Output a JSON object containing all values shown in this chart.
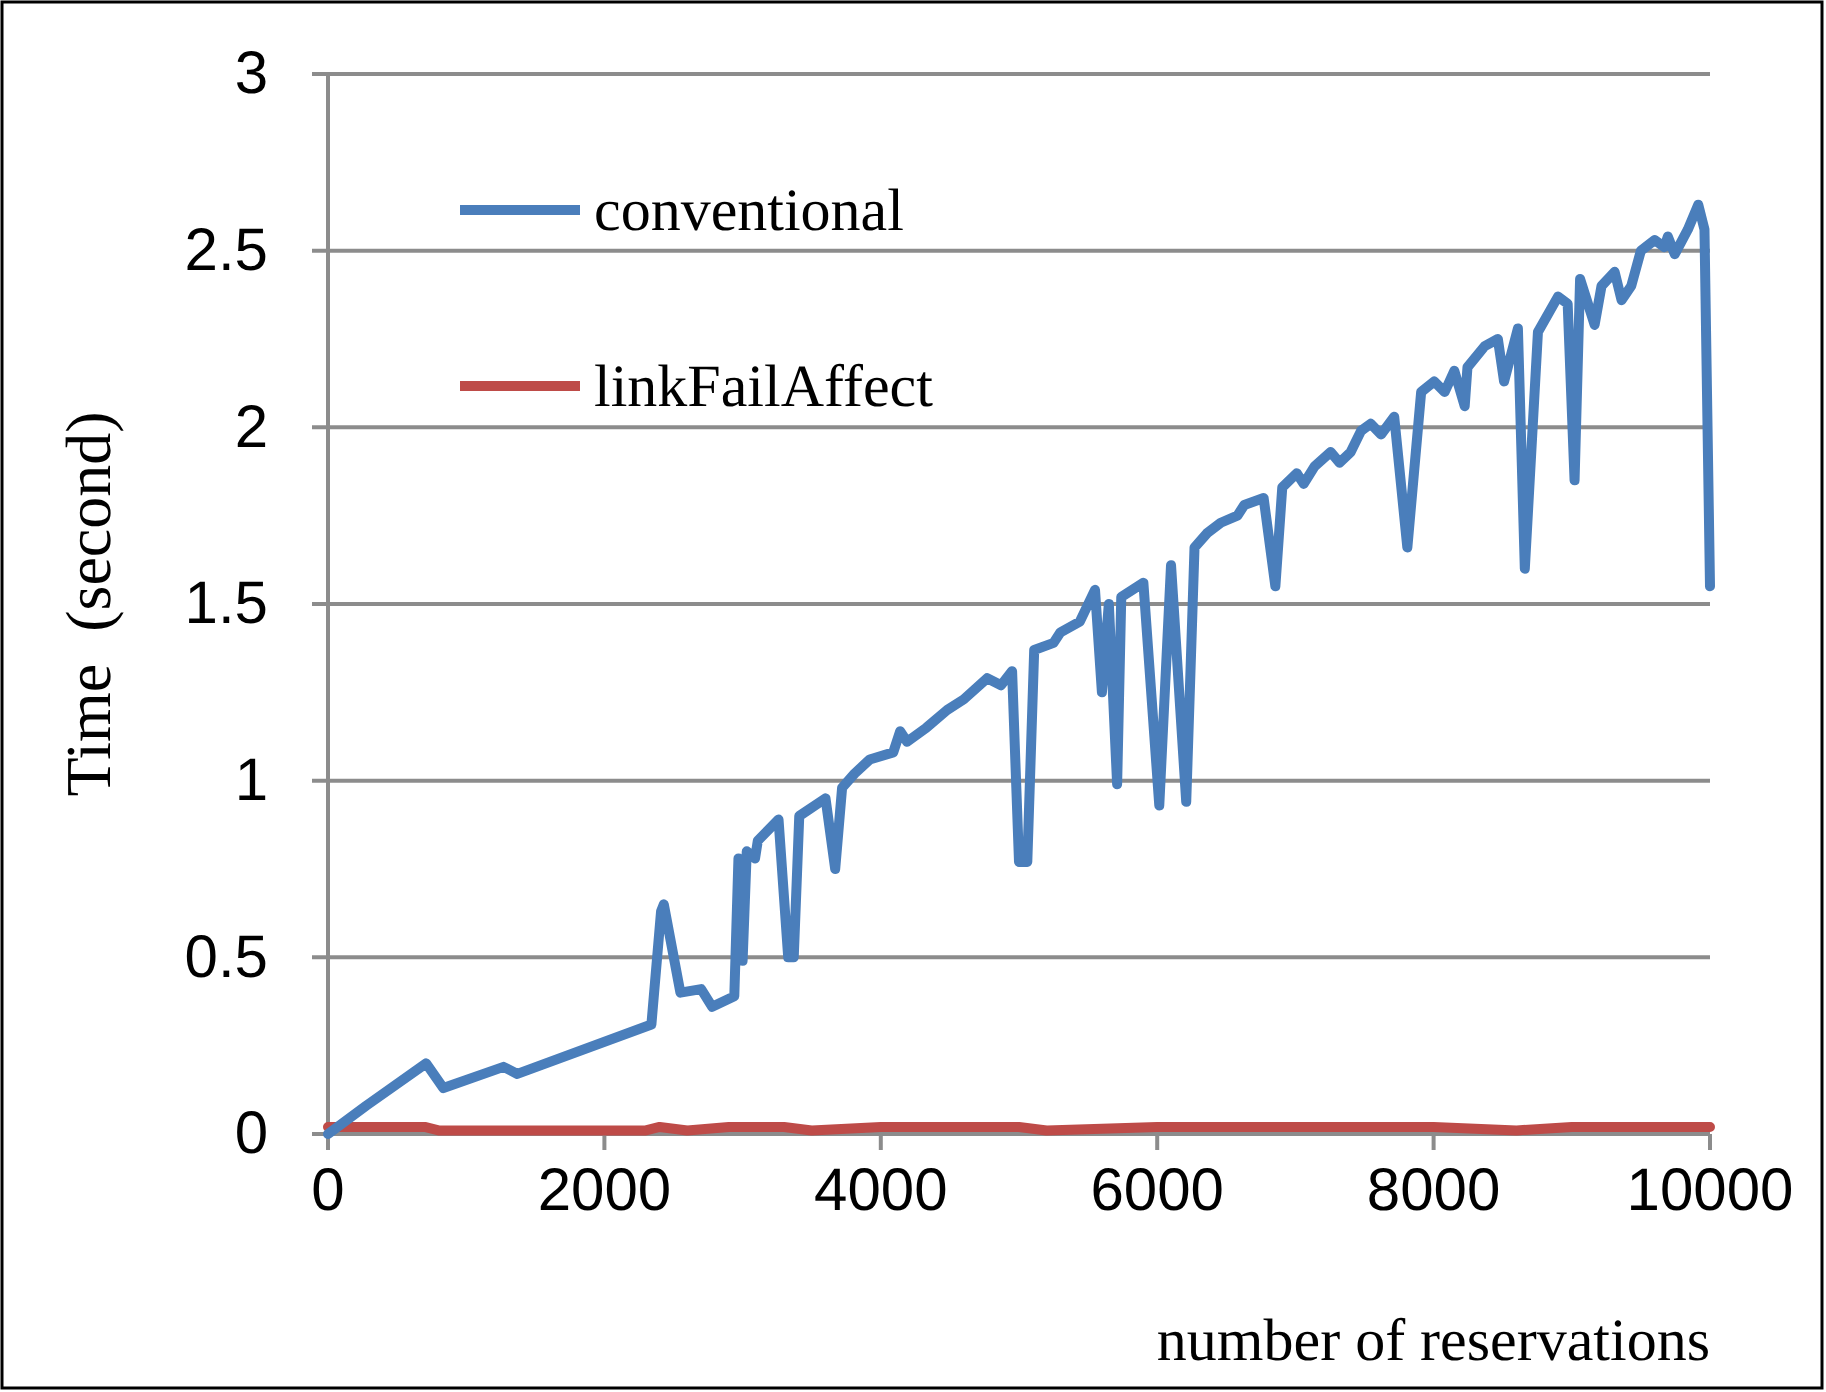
{
  "chart_data": {
    "type": "line",
    "xlabel": "number of reservations",
    "ylabel": "Time  (second)",
    "xlim": [
      0,
      10000
    ],
    "xticks": [
      0,
      2000,
      4000,
      6000,
      8000,
      10000
    ],
    "ylim": [
      0,
      3
    ],
    "yticks": [
      0,
      0.5,
      1,
      1.5,
      2,
      2.5,
      3
    ],
    "grid": "y",
    "legend": "top left",
    "line_style": "solid",
    "marker": "none",
    "series": [
      {
        "name": "conventional",
        "color": "#4a7ebb",
        "x": [
          0,
          276,
          710,
          835,
          1270,
          1370,
          2340,
          2410,
          2430,
          2550,
          2700,
          2780,
          2940,
          2970,
          3000,
          3030,
          3090,
          3110,
          3260,
          3330,
          3370,
          3410,
          3600,
          3670,
          3720,
          3810,
          3920,
          4090,
          4140,
          4190,
          4330,
          4480,
          4600,
          4770,
          4870,
          4950,
          5000,
          5060,
          5110,
          5250,
          5300,
          5440,
          5550,
          5600,
          5650,
          5710,
          5740,
          5900,
          6015,
          6100,
          6210,
          6270,
          6360,
          6460,
          6580,
          6630,
          6770,
          6855,
          6905,
          7010,
          7060,
          7140,
          7255,
          7320,
          7400,
          7475,
          7545,
          7620,
          7715,
          7810,
          7910,
          8005,
          8080,
          8150,
          8225,
          8245,
          8370,
          8465,
          8510,
          8610,
          8660,
          8755,
          8900,
          8970,
          9020,
          9060,
          9165,
          9215,
          9310,
          9360,
          9430,
          9500,
          9600,
          9670,
          9695,
          9745,
          9840,
          9915,
          9960,
          10000
        ],
        "values": [
          0,
          0.08,
          0.2,
          0.13,
          0.19,
          0.17,
          0.31,
          0.63,
          0.65,
          0.4,
          0.41,
          0.36,
          0.39,
          0.78,
          0.49,
          0.8,
          0.78,
          0.83,
          0.89,
          0.5,
          0.5,
          0.9,
          0.95,
          0.75,
          0.98,
          1.02,
          1.06,
          1.08,
          1.14,
          1.11,
          1.15,
          1.2,
          1.23,
          1.29,
          1.27,
          1.31,
          0.77,
          0.77,
          1.37,
          1.39,
          1.42,
          1.45,
          1.54,
          1.25,
          1.5,
          0.99,
          1.52,
          1.56,
          0.93,
          1.61,
          0.94,
          1.66,
          1.7,
          1.73,
          1.75,
          1.78,
          1.8,
          1.55,
          1.83,
          1.87,
          1.84,
          1.89,
          1.93,
          1.9,
          1.93,
          1.99,
          2.01,
          1.98,
          2.03,
          1.66,
          2.1,
          2.13,
          2.1,
          2.16,
          2.06,
          2.17,
          2.23,
          2.25,
          2.13,
          2.28,
          1.6,
          2.27,
          2.37,
          2.35,
          1.85,
          2.42,
          2.29,
          2.4,
          2.44,
          2.36,
          2.4,
          2.5,
          2.53,
          2.51,
          2.54,
          2.49,
          2.56,
          2.63,
          2.56,
          1.55
        ]
      },
      {
        "name": "linkFailAffect",
        "color": "#be4b48",
        "x": [
          0,
          500,
          700,
          800,
          2300,
          2400,
          2600,
          2900,
          3300,
          3500,
          4000,
          5000,
          5200,
          6000,
          6400,
          7000,
          8000,
          8600,
          9000,
          10000
        ],
        "values": [
          0.02,
          0.02,
          0.02,
          0.01,
          0.01,
          0.02,
          0.01,
          0.02,
          0.02,
          0.01,
          0.02,
          0.02,
          0.01,
          0.02,
          0.02,
          0.02,
          0.02,
          0.01,
          0.02,
          0.02
        ]
      }
    ]
  }
}
